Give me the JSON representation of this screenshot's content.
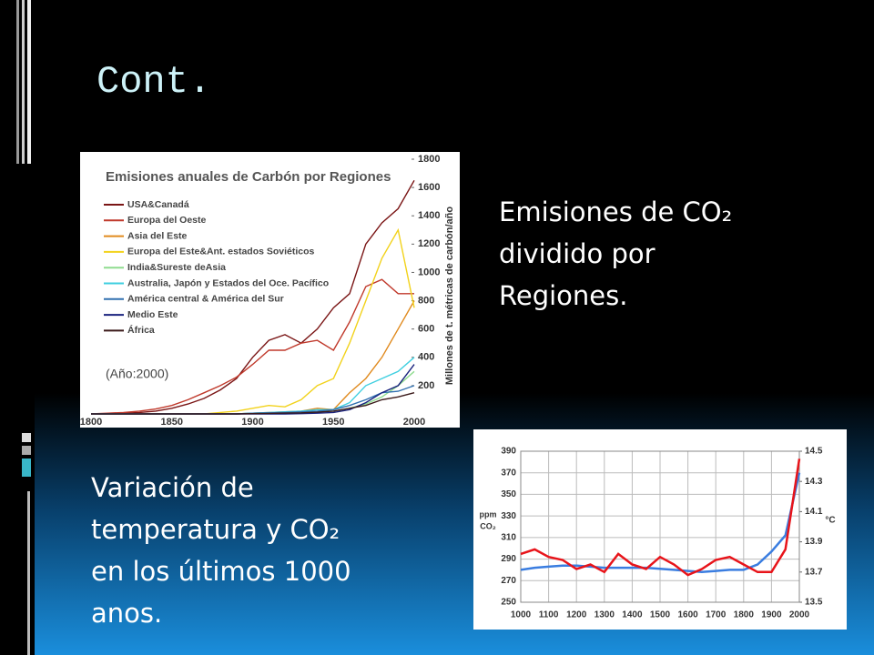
{
  "slide": {
    "title": "Cont.",
    "text_top": [
      "Emisiones de CO₂",
      "dividido por",
      "Regiones."
    ],
    "text_bottom": [
      "Variación de",
      "temperatura y CO₂",
      "en los últimos 1000",
      "anos."
    ]
  },
  "chart_data": [
    {
      "type": "line",
      "title": "Emisiones anuales de Carbón por Regiones",
      "y_label": "Millones de t. métricas de carbón/año",
      "annotation": "(Año:2000)",
      "x": [
        1800,
        1810,
        1820,
        1830,
        1840,
        1850,
        1860,
        1870,
        1880,
        1890,
        1900,
        1910,
        1920,
        1930,
        1940,
        1950,
        1960,
        1970,
        1980,
        1990,
        2000
      ],
      "xlim": [
        1800,
        2000
      ],
      "xticks": [
        1800,
        1850,
        1900,
        1950,
        2000
      ],
      "ylim": [
        0,
        1800
      ],
      "yticks": [
        200,
        400,
        600,
        800,
        1000,
        1200,
        1400,
        1600,
        1800
      ],
      "y_axis_side": "right",
      "grid": false,
      "series": [
        {
          "name": "USA&Canadá",
          "color": "#7a1515",
          "values": [
            0,
            2,
            5,
            10,
            20,
            40,
            70,
            110,
            170,
            250,
            400,
            520,
            560,
            500,
            600,
            750,
            850,
            1200,
            1350,
            1450,
            1650
          ]
        },
        {
          "name": "Europa del Oeste",
          "color": "#c0392b",
          "values": [
            0,
            5,
            10,
            20,
            35,
            60,
            100,
            150,
            200,
            260,
            350,
            450,
            450,
            500,
            520,
            450,
            650,
            900,
            950,
            850,
            850
          ]
        },
        {
          "name": "Asia del Este",
          "color": "#e08a1e",
          "values": [
            0,
            0,
            0,
            0,
            0,
            0,
            0,
            0,
            0,
            0,
            5,
            10,
            15,
            20,
            40,
            30,
            150,
            250,
            400,
            600,
            800
          ]
        },
        {
          "name": "Europa del Este&Ant. estados Soviéticos",
          "color": "#f2d21b",
          "values": [
            0,
            0,
            0,
            0,
            0,
            0,
            0,
            0,
            10,
            20,
            40,
            60,
            50,
            100,
            200,
            250,
            500,
            800,
            1100,
            1300,
            750
          ]
        },
        {
          "name": "India&Sureste deAsia",
          "color": "#8fdc8f",
          "values": [
            0,
            0,
            0,
            0,
            0,
            0,
            0,
            0,
            0,
            0,
            5,
            8,
            10,
            12,
            15,
            20,
            40,
            70,
            120,
            200,
            300
          ]
        },
        {
          "name": "Australia, Japón y Estados del Oce. Pacífico",
          "color": "#3fcfe0",
          "values": [
            0,
            0,
            0,
            0,
            0,
            0,
            0,
            0,
            0,
            0,
            5,
            10,
            15,
            20,
            30,
            30,
            80,
            200,
            250,
            300,
            400
          ]
        },
        {
          "name": "América central & América del Sur",
          "color": "#3070b0",
          "values": [
            0,
            0,
            0,
            0,
            0,
            0,
            0,
            0,
            0,
            0,
            5,
            8,
            10,
            15,
            20,
            30,
            60,
            100,
            150,
            160,
            200
          ]
        },
        {
          "name": "Medio Este",
          "color": "#1a237e",
          "values": [
            0,
            0,
            0,
            0,
            0,
            0,
            0,
            0,
            0,
            0,
            0,
            0,
            0,
            2,
            5,
            10,
            30,
            80,
            150,
            200,
            350
          ]
        },
        {
          "name": "África",
          "color": "#3b1a1a",
          "values": [
            0,
            0,
            0,
            0,
            0,
            0,
            0,
            0,
            0,
            0,
            2,
            4,
            6,
            8,
            12,
            20,
            40,
            60,
            100,
            120,
            150
          ]
        }
      ]
    },
    {
      "type": "line",
      "y_label": [
        "ppm",
        "CO₂"
      ],
      "y2_label": "°C",
      "x": [
        1000,
        1050,
        1100,
        1150,
        1200,
        1250,
        1300,
        1350,
        1400,
        1450,
        1500,
        1550,
        1600,
        1650,
        1700,
        1750,
        1800,
        1850,
        1900,
        1950,
        2000
      ],
      "xlim": [
        1000,
        2000
      ],
      "xticks": [
        1000,
        1100,
        1200,
        1300,
        1400,
        1500,
        1600,
        1700,
        1800,
        1900,
        2000
      ],
      "ylim": [
        250,
        390
      ],
      "yticks": [
        250,
        270,
        290,
        310,
        330,
        350,
        370,
        390
      ],
      "y2lim": [
        13.5,
        14.5
      ],
      "y2ticks": [
        13.5,
        13.7,
        13.9,
        14.1,
        14.3,
        14.5
      ],
      "y_axis_side": "left",
      "grid": true,
      "series": [
        {
          "color": "#3a7de0",
          "values": [
            280,
            282,
            283,
            284,
            284,
            283,
            282,
            282,
            282,
            282,
            281,
            280,
            279,
            278,
            279,
            280,
            280,
            285,
            297,
            312,
            370
          ]
        },
        {
          "color": "#e8141a",
          "axis": "y2",
          "values": [
            13.82,
            13.85,
            13.8,
            13.78,
            13.72,
            13.75,
            13.7,
            13.82,
            13.75,
            13.72,
            13.8,
            13.75,
            13.68,
            13.72,
            13.78,
            13.8,
            13.75,
            13.7,
            13.7,
            13.85,
            14.45
          ]
        }
      ]
    }
  ]
}
